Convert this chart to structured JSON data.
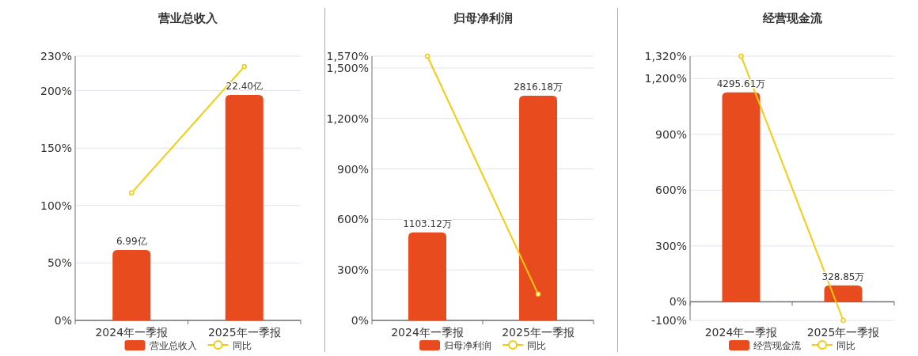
{
  "chart_data": [
    {
      "type": "bar",
      "title": "营业总收入",
      "categories": [
        "2024年一季报",
        "2025年一季报"
      ],
      "series": [
        {
          "name": "营业总收入",
          "axis": "y2",
          "color": "#e84c1e",
          "values": [
            6.99,
            22.4
          ],
          "value_labels": [
            "6.99亿",
            "22.40亿"
          ]
        },
        {
          "name": "同比",
          "type": "line",
          "color": "#f2cd0f",
          "marker": "circle",
          "values": [
            111,
            221
          ]
        }
      ],
      "ylim": [
        0,
        230
      ],
      "yticks": [
        {
          "value": 0,
          "label": "0%"
        },
        {
          "value": 50,
          "label": "50%"
        },
        {
          "value": 100,
          "label": "100%"
        },
        {
          "value": 150,
          "label": "150%"
        },
        {
          "value": 200,
          "label": "200%"
        },
        {
          "value": 230,
          "label": "230%"
        }
      ],
      "y2lim": [
        0,
        26.25
      ],
      "grid": "y",
      "legend": "bottom"
    },
    {
      "type": "bar",
      "title": "归母净利润",
      "categories": [
        "2024年一季报",
        "2025年一季报"
      ],
      "series": [
        {
          "name": "归母净利润",
          "axis": "y2",
          "color": "#e84c1e",
          "values": [
            1103.12,
            2816.18
          ],
          "value_labels": [
            "1103.12万",
            "2816.18万"
          ]
        },
        {
          "name": "同比",
          "type": "line",
          "color": "#f2cd0f",
          "marker": "circle",
          "values": [
            1570,
            156
          ]
        }
      ],
      "ylim": [
        0,
        1570
      ],
      "yticks": [
        {
          "value": 0,
          "label": "0%"
        },
        {
          "value": 300,
          "label": "300%"
        },
        {
          "value": 600,
          "label": "600%"
        },
        {
          "value": 900,
          "label": "900%"
        },
        {
          "value": 1200,
          "label": "1,200%"
        },
        {
          "value": 1500,
          "label": "1,500%"
        },
        {
          "value": 1570,
          "label": "1,570%"
        }
      ],
      "y2lim": [
        0,
        3312
      ],
      "grid": "y",
      "legend": "bottom"
    },
    {
      "type": "bar",
      "title": "经营现金流",
      "categories": [
        "2024年一季报",
        "2025年一季报"
      ],
      "series": [
        {
          "name": "经营现金流",
          "axis": "y2",
          "color": "#e84c1e",
          "values": [
            4295.61,
            328.85
          ],
          "value_labels": [
            "4295.61万",
            "328.85万"
          ]
        },
        {
          "name": "同比",
          "type": "line",
          "color": "#f2cd0f",
          "marker": "circle",
          "values": [
            1320,
            -100
          ]
        }
      ],
      "ylim": [
        -100,
        1320
      ],
      "yticks": [
        {
          "value": -100,
          "label": "-100%"
        },
        {
          "value": 0,
          "label": "0%"
        },
        {
          "value": 300,
          "label": "300%"
        },
        {
          "value": 600,
          "label": "600%"
        },
        {
          "value": 900,
          "label": "900%"
        },
        {
          "value": 1200,
          "label": "1,200%"
        },
        {
          "value": 1320,
          "label": "1,320%"
        }
      ],
      "y2lim": [
        -390,
        5041
      ],
      "grid": "y",
      "legend": "bottom"
    }
  ]
}
